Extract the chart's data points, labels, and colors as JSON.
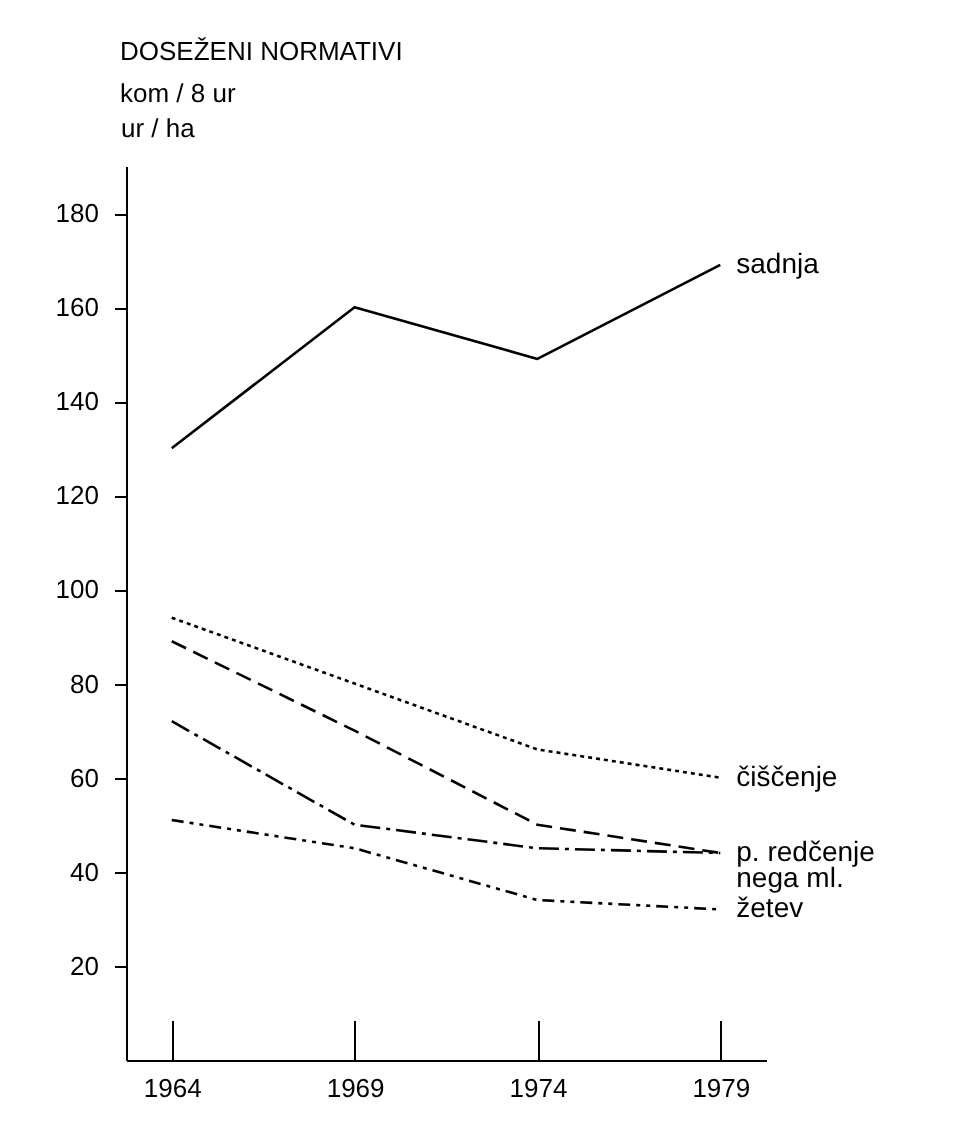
{
  "chart_data": {
    "type": "line",
    "title": "DOSEŽENI NORMATIVI",
    "subtitle": "kom / 8 ur",
    "ylabel": "ur / ha",
    "categories": [
      "1964",
      "1969",
      "1974",
      "1979"
    ],
    "series": [
      {
        "name": "sadnja",
        "color": "#000000",
        "line_style": "solid",
        "values": [
          130,
          160,
          149,
          169
        ]
      },
      {
        "name": "čiščenje",
        "color": "#000000",
        "line_style": "dotted",
        "values": [
          94,
          80,
          66,
          60
        ]
      },
      {
        "name": "p. redčenje",
        "color": "#000000",
        "line_style": "dashed",
        "values": [
          89,
          70,
          50,
          44
        ]
      },
      {
        "name": "nega ml.",
        "color": "#000000",
        "line_style": "dashed",
        "values": [
          72,
          50,
          45,
          44
        ]
      },
      {
        "name": "žetev",
        "color": "#000000",
        "line_style": "dashed",
        "values": [
          51,
          45,
          34,
          32
        ]
      }
    ],
    "ylim": [
      0,
      190
    ],
    "yticks": [
      20,
      40,
      60,
      80,
      100,
      120,
      140,
      160,
      180
    ],
    "grid": false,
    "legend": false,
    "marker": "none"
  }
}
